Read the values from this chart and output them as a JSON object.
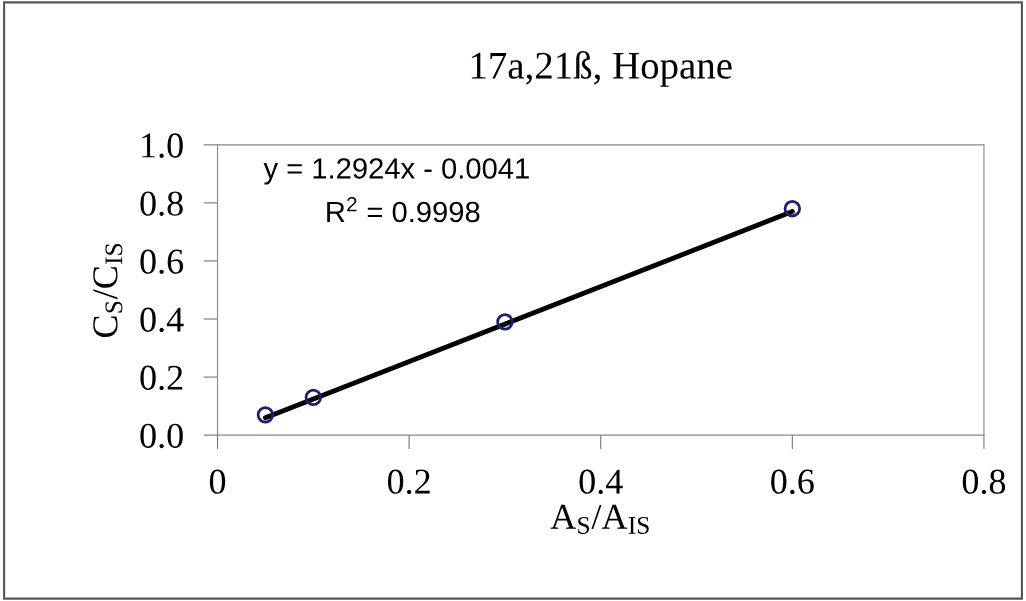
{
  "chart_data": {
    "type": "scatter",
    "title": "17a,21ß, Hopane",
    "xlabel": "A$_{S}$/A$_{IS}$",
    "ylabel": "C$_{S}$/C$_{IS}$",
    "x": [
      0.05,
      0.1,
      0.3,
      0.6
    ],
    "series": [
      {
        "color": "#1f1f6e",
        "marker": "circle",
        "values": [
          0.07,
          0.13,
          0.39,
          0.78
        ]
      },
      {
        "type": "line",
        "color": "#000000",
        "marker": "none",
        "x": [
          0.05,
          0.6
        ],
        "values": [
          0.06,
          0.77
        ]
      }
    ],
    "xlim": [
      0,
      0.8
    ],
    "xticks": [
      0,
      0.2,
      0.4,
      0.6,
      0.8
    ],
    "ylim": [
      0,
      1.0
    ],
    "yticks": [
      {
        "value": 0,
        "label": "0.0"
      },
      {
        "value": 0.2,
        "label": "0.2"
      },
      {
        "value": 0.4,
        "label": "0.4"
      },
      {
        "value": 0.6,
        "label": "0.6"
      },
      {
        "value": 0.8,
        "label": "0.8"
      },
      {
        "value": 1.0,
        "label": "1.0"
      }
    ],
    "annotations": [
      "y = 1.2924x - 0.0041",
      "R$^{2}$ = 0.9998"
    ],
    "grid": false,
    "legend": false
  }
}
